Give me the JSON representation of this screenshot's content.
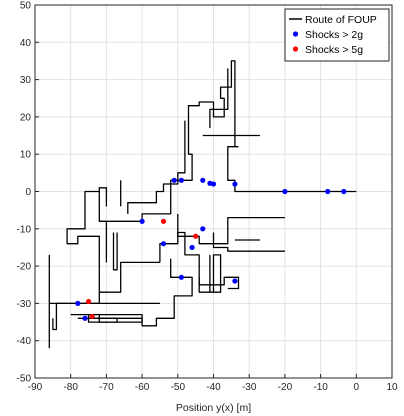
{
  "chart_data": {
    "type": "scatter",
    "title": "",
    "xlabel": "Position y(x) [m]",
    "ylabel": "",
    "xlim": [
      -90,
      10
    ],
    "ylim": [
      -50,
      50
    ],
    "xticks": [
      "-90",
      "-80",
      "-70",
      "-60",
      "-50",
      "-40",
      "-30",
      "-20",
      "-10",
      "0",
      "10"
    ],
    "yticks": [
      "50",
      "40",
      "30",
      "20",
      "10",
      "0",
      "-10",
      "-20",
      "-30",
      "-40",
      "-50"
    ],
    "grid": true,
    "legend_position": "top-right",
    "colors": {
      "route": "#000000",
      "shock2g": "#0000ff",
      "shock5g": "#ff0000",
      "grid": "#e2e2e2",
      "axis": "#262626"
    },
    "series": [
      {
        "name": "Route of FOUP",
        "kind": "line",
        "segments": [
          [
            [
              0,
              0
            ],
            [
              -34,
              0
            ],
            [
              -34,
              3
            ],
            [
              -36,
              3
            ],
            [
              -36,
              12
            ],
            [
              -33,
              12
            ]
          ],
          [
            [
              -34,
              12
            ],
            [
              -34,
              35
            ],
            [
              -35,
              35
            ],
            [
              -35,
              28
            ],
            [
              -38,
              28
            ],
            [
              -38,
              25
            ],
            [
              -37,
              25
            ],
            [
              -37,
              20
            ],
            [
              -40,
              20
            ],
            [
              -40,
              24
            ],
            [
              -44,
              24
            ],
            [
              -44,
              23
            ],
            [
              -47,
              23
            ],
            [
              -47,
              10
            ],
            [
              -46,
              10
            ],
            [
              -46,
              3
            ],
            [
              -52,
              3
            ],
            [
              -52,
              0
            ]
          ],
          [
            [
              -43,
              15
            ],
            [
              -27,
              15
            ]
          ],
          [
            [
              -36,
              33
            ],
            [
              -36,
              22
            ],
            [
              -41,
              22
            ],
            [
              -41,
              17
            ]
          ],
          [
            [
              -48,
              19
            ],
            [
              -48,
              5
            ],
            [
              -50,
              5
            ],
            [
              -50,
              2
            ],
            [
              -54,
              2
            ],
            [
              -54,
              0
            ],
            [
              -56,
              0
            ],
            [
              -56,
              -3
            ],
            [
              -64,
              -3
            ],
            [
              -64,
              -6
            ]
          ],
          [
            [
              -52,
              0
            ],
            [
              -52,
              -6
            ],
            [
              -60,
              -6
            ],
            [
              -60,
              -8
            ],
            [
              -72,
              -8
            ],
            [
              -72,
              1
            ],
            [
              -70,
              1
            ],
            [
              -70,
              -4
            ]
          ],
          [
            [
              -50,
              -6
            ],
            [
              -50,
              -12
            ],
            [
              -44,
              -12
            ],
            [
              -44,
              -14
            ],
            [
              -36,
              -14
            ],
            [
              -36,
              -7
            ],
            [
              -20,
              -7
            ]
          ],
          [
            [
              -40,
              -11
            ],
            [
              -40,
              -15
            ],
            [
              -36,
              -15
            ],
            [
              -36,
              -16
            ],
            [
              -20,
              -16
            ]
          ],
          [
            [
              -34,
              -13
            ],
            [
              -27,
              -13
            ]
          ],
          [
            [
              -72,
              0
            ],
            [
              -76,
              0
            ],
            [
              -76,
              -10
            ],
            [
              -81,
              -10
            ],
            [
              -81,
              -14
            ],
            [
              -78,
              -14
            ],
            [
              -78,
              -12
            ],
            [
              -72,
              -12
            ],
            [
              -72,
              -27
            ],
            [
              -66,
              -27
            ],
            [
              -66,
              -19
            ],
            [
              -55,
              -19
            ]
          ],
          [
            [
              -55,
              -19
            ],
            [
              -55,
              -14
            ],
            [
              -50,
              -14
            ],
            [
              -50,
              -11
            ],
            [
              -48,
              -11
            ],
            [
              -48,
              -17
            ],
            [
              -44,
              -17
            ],
            [
              -44,
              -22
            ]
          ],
          [
            [
              -44,
              -22
            ],
            [
              -44,
              -25
            ],
            [
              -37,
              -25
            ],
            [
              -37,
              -23
            ],
            [
              -33,
              -23
            ],
            [
              -33,
              -26
            ],
            [
              -36,
              -26
            ]
          ],
          [
            [
              -41,
              -17
            ],
            [
              -41,
              -27
            ],
            [
              -40,
              -27
            ],
            [
              -40,
              -17
            ],
            [
              -38,
              -17
            ],
            [
              -38,
              -27
            ],
            [
              -44,
              -27
            ],
            [
              -44,
              -23
            ]
          ],
          [
            [
              -52,
              -18
            ],
            [
              -52,
              -23
            ],
            [
              -46,
              -23
            ],
            [
              -46,
              -28
            ],
            [
              -51,
              -28
            ],
            [
              -51,
              -34
            ],
            [
              -56,
              -34
            ],
            [
              -56,
              -36
            ],
            [
              -60,
              -36
            ],
            [
              -60,
              -34
            ],
            [
              -78,
              -34
            ]
          ],
          [
            [
              -86,
              -17
            ],
            [
              -86,
              -42
            ]
          ],
          [
            [
              -85,
              -34
            ],
            [
              -85,
              -37
            ],
            [
              -84,
              -37
            ],
            [
              -84,
              -30
            ],
            [
              -72,
              -30
            ],
            [
              -72,
              -27
            ]
          ],
          [
            [
              -86,
              -30
            ],
            [
              -55,
              -30
            ]
          ],
          [
            [
              -80,
              -33
            ],
            [
              -60,
              -33
            ],
            [
              -60,
              -35
            ],
            [
              -72,
              -35
            ],
            [
              -72,
              -33
            ]
          ],
          [
            [
              -75,
              -33
            ],
            [
              -75,
              -35
            ],
            [
              -67,
              -35
            ],
            [
              -67,
              -34
            ],
            [
              -74,
              -34
            ]
          ],
          [
            [
              -68,
              -11
            ],
            [
              -68,
              -21
            ],
            [
              -67,
              -21
            ],
            [
              -67,
              -11
            ]
          ],
          [
            [
              -70,
              -19
            ],
            [
              -70,
              -8
            ],
            [
              -72,
              -8
            ]
          ],
          [
            [
              -66,
              -4
            ],
            [
              -66,
              3
            ]
          ]
        ]
      },
      {
        "name": "Shocks > 2g",
        "kind": "points",
        "points": [
          [
            -3.5,
            0
          ],
          [
            -8,
            0
          ],
          [
            -20,
            0
          ],
          [
            -34,
            2
          ],
          [
            -40,
            2
          ],
          [
            -41,
            2.2
          ],
          [
            -43,
            3
          ],
          [
            -49,
            3
          ],
          [
            -51,
            3
          ],
          [
            -60,
            -8
          ],
          [
            -43,
            -10
          ],
          [
            -46,
            -15
          ],
          [
            -54,
            -14
          ],
          [
            -49,
            -23
          ],
          [
            -34,
            -24
          ],
          [
            -78,
            -30
          ],
          [
            -76,
            -34
          ]
        ]
      },
      {
        "name": "Shocks > 5g",
        "kind": "points",
        "points": [
          [
            -54,
            -8
          ],
          [
            -45,
            -12
          ],
          [
            -75,
            -29.5
          ],
          [
            -74,
            -33.5
          ]
        ]
      }
    ]
  }
}
